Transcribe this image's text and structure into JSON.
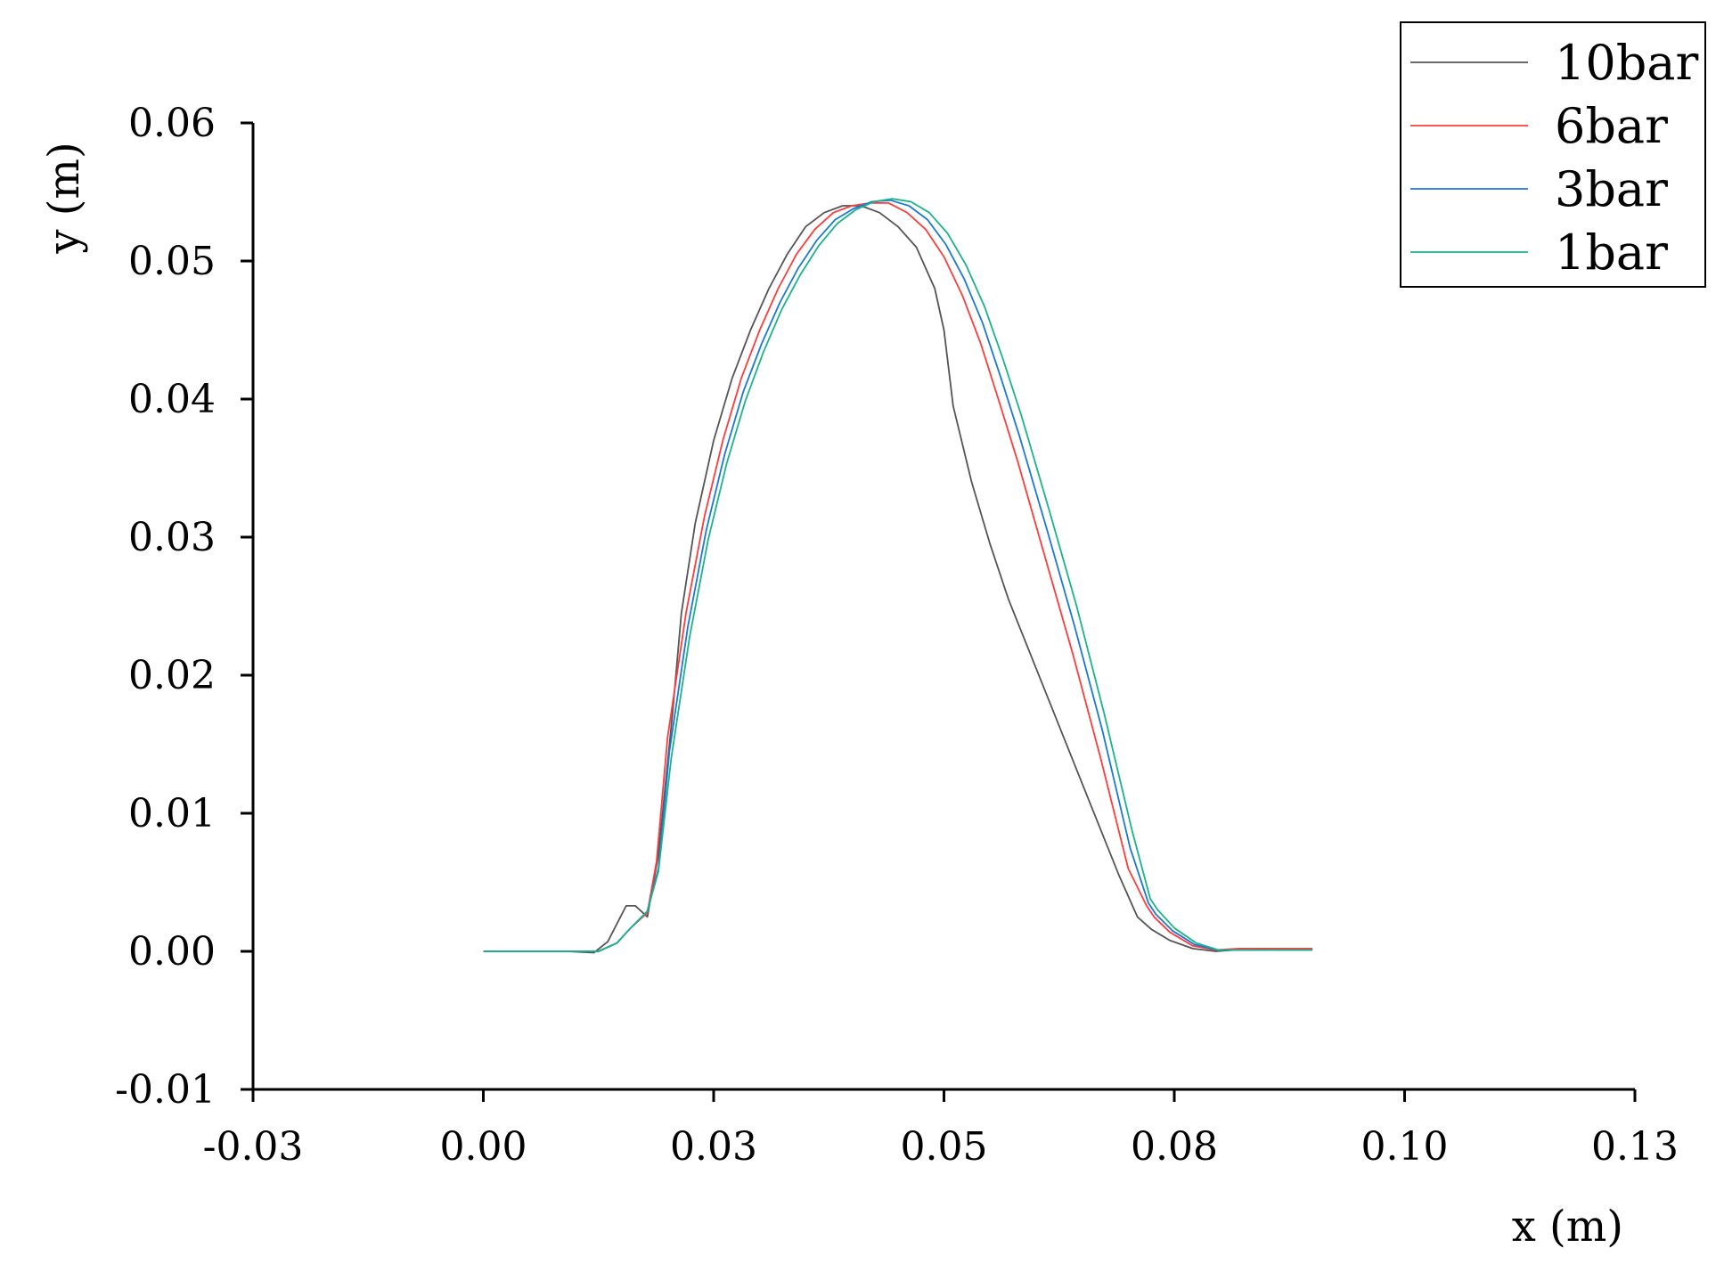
{
  "chart_data": {
    "type": "line",
    "xlabel": "x (m)",
    "ylabel": "y (m)",
    "xlim": [
      -0.025,
      0.125
    ],
    "ylim": [
      -0.01,
      0.06
    ],
    "xticks": [
      -0.025,
      0.0,
      0.025,
      0.05,
      0.075,
      0.1,
      0.125
    ],
    "xtick_labels": [
      "-0.03",
      "0.00",
      "0.03",
      "0.05",
      "0.08",
      "0.10",
      "0.13"
    ],
    "yticks": [
      -0.01,
      0.0,
      0.01,
      0.02,
      0.03,
      0.04,
      0.05,
      0.06
    ],
    "ytick_labels": [
      "-0.01",
      "0.00",
      "0.01",
      "0.02",
      "0.03",
      "0.04",
      "0.05",
      "0.06"
    ],
    "grid": false,
    "legend_position": "top-right",
    "series": [
      {
        "name": "10bar",
        "color": "#555555",
        "x": [
          0.0,
          0.009,
          0.012,
          0.0135,
          0.0155,
          0.0165,
          0.0178,
          0.0182,
          0.019,
          0.0205,
          0.0215,
          0.023,
          0.025,
          0.027,
          0.029,
          0.031,
          0.033,
          0.035,
          0.037,
          0.039,
          0.041,
          0.043,
          0.045,
          0.047,
          0.049,
          0.05,
          0.051,
          0.053,
          0.055,
          0.057,
          0.06,
          0.063,
          0.066,
          0.069,
          0.071,
          0.0725,
          0.0745,
          0.077,
          0.0795,
          0.0815,
          0.0835,
          0.086,
          0.09
        ],
        "y": [
          0.0,
          0.0,
          -0.0001,
          0.0007,
          0.0033,
          0.0033,
          0.0025,
          0.004,
          0.007,
          0.017,
          0.0245,
          0.031,
          0.037,
          0.0415,
          0.045,
          0.048,
          0.0505,
          0.0525,
          0.0535,
          0.054,
          0.054,
          0.0535,
          0.0525,
          0.051,
          0.048,
          0.045,
          0.0395,
          0.034,
          0.0295,
          0.0255,
          0.0205,
          0.0155,
          0.0105,
          0.0055,
          0.0025,
          0.0016,
          0.0008,
          0.0002,
          0.0,
          0.0001,
          0.0001,
          0.0002,
          0.0002
        ]
      },
      {
        "name": "6bar",
        "color": "#ff3b3b",
        "x": [
          0.0,
          0.01,
          0.0125,
          0.0145,
          0.016,
          0.0178,
          0.0188,
          0.02,
          0.022,
          0.024,
          0.026,
          0.028,
          0.03,
          0.032,
          0.034,
          0.036,
          0.038,
          0.04,
          0.042,
          0.044,
          0.046,
          0.048,
          0.05,
          0.052,
          0.054,
          0.056,
          0.058,
          0.061,
          0.064,
          0.067,
          0.07,
          0.072,
          0.0728,
          0.0745,
          0.077,
          0.0795,
          0.082,
          0.086,
          0.09
        ],
        "y": [
          0.0,
          0.0,
          0.0,
          0.0006,
          0.0017,
          0.0028,
          0.0065,
          0.0155,
          0.0245,
          0.0315,
          0.037,
          0.0415,
          0.045,
          0.048,
          0.0505,
          0.0523,
          0.0535,
          0.054,
          0.0542,
          0.0542,
          0.0535,
          0.0523,
          0.0503,
          0.0475,
          0.044,
          0.0398,
          0.0355,
          0.0285,
          0.0215,
          0.014,
          0.006,
          0.0033,
          0.0025,
          0.0014,
          0.0004,
          0.0001,
          0.0002,
          0.0002,
          0.0002
        ]
      },
      {
        "name": "3bar",
        "color": "#1a78d8",
        "x": [
          0.0,
          0.01,
          0.0125,
          0.0145,
          0.016,
          0.0178,
          0.019,
          0.0202,
          0.0222,
          0.0242,
          0.0262,
          0.0282,
          0.0302,
          0.0322,
          0.0342,
          0.0362,
          0.0382,
          0.0402,
          0.0422,
          0.0442,
          0.0462,
          0.0482,
          0.0502,
          0.0522,
          0.0542,
          0.0562,
          0.0582,
          0.0612,
          0.0642,
          0.0672,
          0.0702,
          0.0722,
          0.073,
          0.0748,
          0.0772,
          0.0797,
          0.082,
          0.086,
          0.09
        ],
        "y": [
          0.0,
          0.0,
          0.0,
          0.0006,
          0.0017,
          0.0029,
          0.006,
          0.0145,
          0.0235,
          0.0305,
          0.036,
          0.0405,
          0.044,
          0.047,
          0.0495,
          0.0515,
          0.053,
          0.0538,
          0.0543,
          0.0544,
          0.054,
          0.053,
          0.0512,
          0.0487,
          0.0455,
          0.0415,
          0.0373,
          0.0305,
          0.0235,
          0.016,
          0.0075,
          0.0035,
          0.0027,
          0.0015,
          0.0005,
          0.0001,
          0.0001,
          0.0001,
          0.0001
        ]
      },
      {
        "name": "1bar",
        "color": "#1ab38a",
        "x": [
          0.0,
          0.01,
          0.0125,
          0.0145,
          0.016,
          0.0178,
          0.019,
          0.0204,
          0.0224,
          0.0244,
          0.0264,
          0.0284,
          0.0304,
          0.0324,
          0.0344,
          0.0364,
          0.0384,
          0.0404,
          0.0424,
          0.0444,
          0.0464,
          0.0484,
          0.0504,
          0.0524,
          0.0544,
          0.0564,
          0.0584,
          0.0614,
          0.0644,
          0.0674,
          0.0704,
          0.0724,
          0.0732,
          0.075,
          0.0774,
          0.0798,
          0.082,
          0.086,
          0.09
        ],
        "y": [
          0.0,
          0.0,
          0.0,
          0.0006,
          0.0017,
          0.0029,
          0.0058,
          0.014,
          0.0228,
          0.0298,
          0.0353,
          0.0398,
          0.0434,
          0.0465,
          0.049,
          0.0511,
          0.0527,
          0.0537,
          0.0543,
          0.0545,
          0.0543,
          0.0535,
          0.052,
          0.0497,
          0.0467,
          0.0429,
          0.0388,
          0.032,
          0.025,
          0.0172,
          0.0088,
          0.0038,
          0.003,
          0.0017,
          0.0006,
          0.0001,
          0.0001,
          0.0001,
          0.0001
        ]
      }
    ]
  }
}
